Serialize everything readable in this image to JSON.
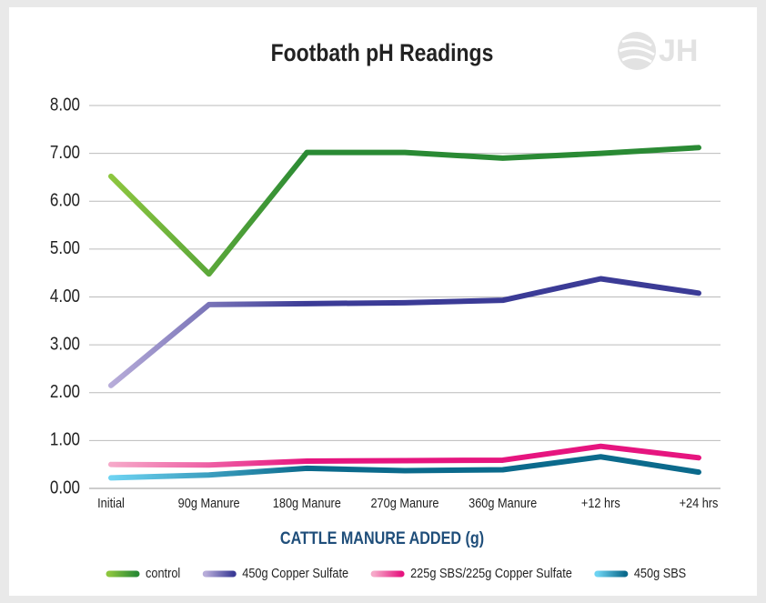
{
  "logo": "JH",
  "chart_data": {
    "type": "line",
    "title": "Footbath pH Readings",
    "x_label": "CATTLE MANURE ADDED (g)",
    "categories": [
      "Initial",
      "90g Manure",
      "180g Manure",
      "270g Manure",
      "360g Manure",
      "+12 hrs",
      "+24 hrs"
    ],
    "series": [
      {
        "name": "control",
        "color_start": "#8dc63f",
        "color": "#2a8a34",
        "values": [
          6.52,
          4.48,
          7.02,
          7.02,
          6.9,
          7.0,
          7.12
        ]
      },
      {
        "name": "450g Copper Sulfate",
        "color_start": "#b7acd9",
        "color": "#3b3b96",
        "values": [
          2.15,
          3.84,
          3.86,
          3.88,
          3.93,
          4.38,
          4.08
        ]
      },
      {
        "name": "225g SBS/225g Copper Sulfate",
        "color_start": "#f6a9c9",
        "color": "#e6157f",
        "values": [
          0.5,
          0.49,
          0.57,
          0.58,
          0.59,
          0.88,
          0.64
        ]
      },
      {
        "name": "450g SBS",
        "color_start": "#6dd3f2",
        "color": "#0b6a8c",
        "values": [
          0.22,
          0.28,
          0.42,
          0.37,
          0.39,
          0.66,
          0.34
        ]
      }
    ],
    "ylim": [
      0,
      8
    ],
    "yticks": [
      {
        "value": 0,
        "label": "0.00"
      },
      {
        "value": 1,
        "label": "1.00"
      },
      {
        "value": 2,
        "label": "2.00"
      },
      {
        "value": 3,
        "label": "3.00"
      },
      {
        "value": 4,
        "label": "4.00"
      },
      {
        "value": 5,
        "label": "5.00"
      },
      {
        "value": 6,
        "label": "6.00"
      },
      {
        "value": 7,
        "label": "7.00"
      },
      {
        "value": 8,
        "label": "8.00"
      }
    ],
    "grid": true,
    "legend": "bottom"
  }
}
